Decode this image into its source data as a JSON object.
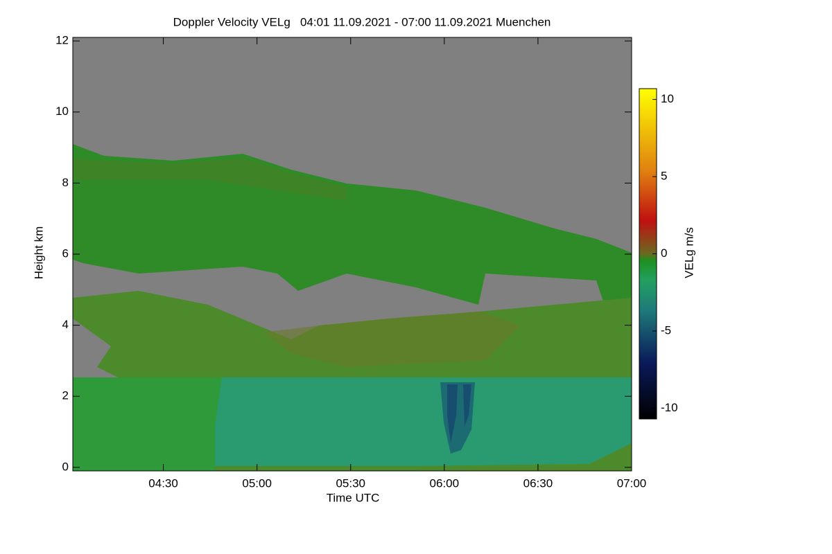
{
  "chart_data": {
    "type": "heatmap",
    "title": "Doppler Velocity VELg   04:01 11.09.2021 - 07:00 11.09.2021 Muenchen",
    "x_label": "Time UTC",
    "y_label": "Height km",
    "xlim": [
      241,
      420
    ],
    "xticks": [
      {
        "value": 270,
        "label": "04:30"
      },
      {
        "value": 300,
        "label": "05:00"
      },
      {
        "value": 330,
        "label": "05:30"
      },
      {
        "value": 360,
        "label": "06:00"
      },
      {
        "value": 390,
        "label": "06:30"
      },
      {
        "value": 420,
        "label": "07:00"
      }
    ],
    "ylim": [
      -0.1,
      12.1
    ],
    "yticks": [
      0,
      2,
      4,
      6,
      8,
      10,
      12
    ],
    "colorbar": {
      "label": "VELg m/s",
      "clim": [
        -10.7,
        10.7
      ],
      "ticks": [
        -10,
        -5,
        0,
        5,
        10
      ]
    }
  }
}
